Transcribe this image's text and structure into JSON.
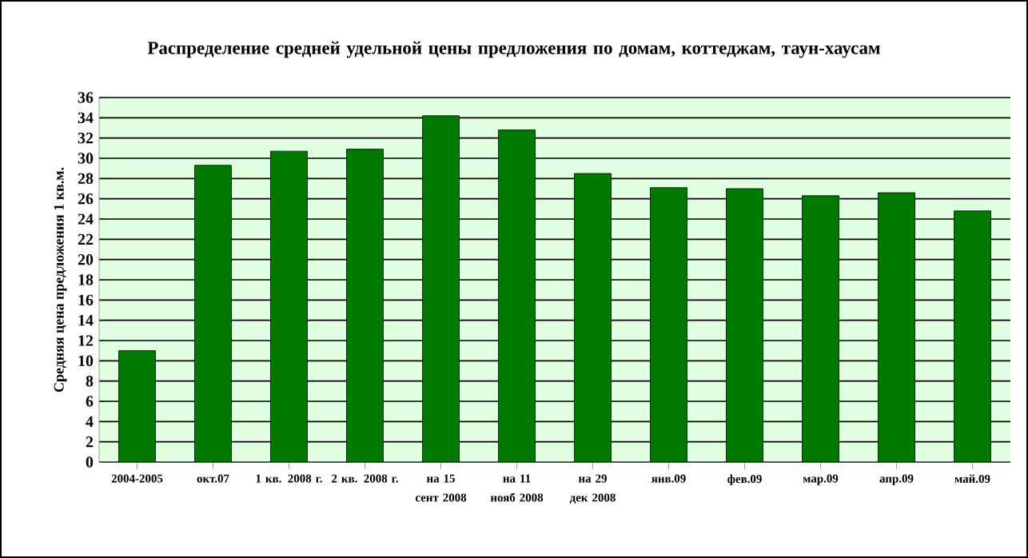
{
  "chart_data": {
    "type": "bar",
    "title": "Распределение средней удельной цены предложения по домам, коттеджам, таун-хаусам",
    "ylabel": "Средняя цена предложения 1 кв.м.",
    "categories": [
      "2004-2005",
      "окт.07",
      "1 кв. 2008 г.",
      "2 кв. 2008 г.",
      "на 15 сент 2008",
      "на 11 нояб 2008",
      "на 29 дек 2008",
      "янв.09",
      "фев.09",
      "мар.09",
      "апр.09",
      "май.09"
    ],
    "values": [
      11.0,
      29.3,
      30.7,
      30.9,
      34.2,
      32.8,
      28.5,
      27.1,
      27.0,
      26.3,
      26.6,
      24.8
    ],
    "color": "#007a00",
    "ylim": [
      0,
      36
    ],
    "yticks": [
      0,
      2,
      4,
      6,
      8,
      10,
      12,
      14,
      16,
      18,
      20,
      22,
      24,
      26,
      28,
      30,
      32,
      34,
      36
    ],
    "grid": "y"
  }
}
